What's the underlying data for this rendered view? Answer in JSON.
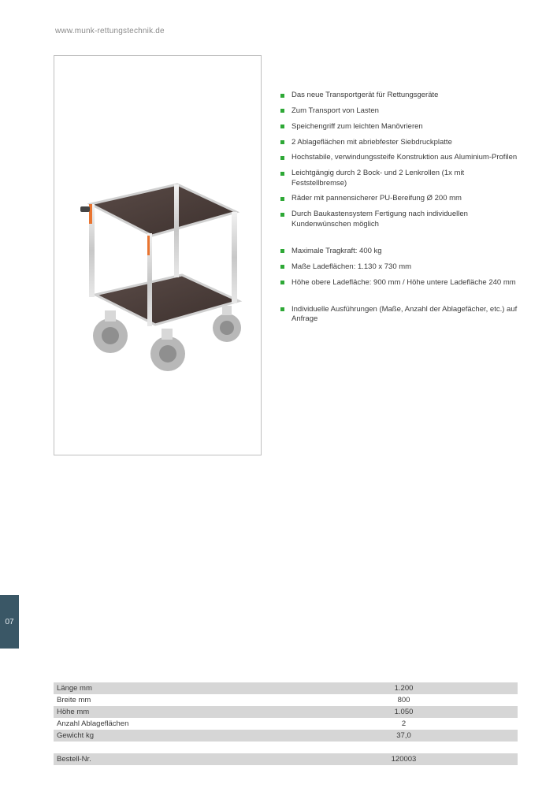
{
  "header": {
    "url": "www.munk-rettungstechnik.de"
  },
  "page_tab": "07",
  "features": [
    {
      "text": "Das neue Transportgerät für Rettungsgeräte",
      "gap_after": false
    },
    {
      "text": "Zum Transport von Lasten",
      "gap_after": false
    },
    {
      "text": "Speichengriff zum leichten Manövrieren",
      "gap_after": false
    },
    {
      "text": "2 Ablageflächen mit abriebfester Siebdruckplatte",
      "gap_after": false
    },
    {
      "text": "Hochstabile, verwindungssteife Konstruktion aus Aluminium-Profilen",
      "gap_after": false
    },
    {
      "text": "Leichtgängig durch 2 Bock- und 2 Lenkrollen (1x mit Feststellbremse)",
      "gap_after": false
    },
    {
      "text": "Räder mit pannensicherer PU-Bereifung Ø 200 mm",
      "gap_after": false
    },
    {
      "text": "Durch Baukastensystem Fertigung nach individuellen Kundenwünschen möglich",
      "gap_after": true
    },
    {
      "text": "Maximale Tragkraft: 400 kg",
      "gap_after": false
    },
    {
      "text": "Maße Ladeflächen: 1.130 x 730 mm",
      "gap_after": false
    },
    {
      "text": "Höhe obere Ladefläche: 900 mm / Höhe untere Ladefläche 240 mm",
      "gap_after": true
    },
    {
      "text": "Individuelle Ausführungen (Maße, Anzahl der Ablagefächer, etc.) auf Anfrage",
      "gap_after": false
    }
  ],
  "table1": {
    "rows": [
      {
        "label": "Länge mm",
        "value": "1.200",
        "shaded": true
      },
      {
        "label": "Breite mm",
        "value": "800",
        "shaded": false
      },
      {
        "label": "Höhe mm",
        "value": "1.050",
        "shaded": true
      },
      {
        "label": "Anzahl Ablageflächen",
        "value": "2",
        "shaded": false
      },
      {
        "label": "Gewicht kg",
        "value": "37,0",
        "shaded": true
      }
    ]
  },
  "table2": {
    "rows": [
      {
        "label": "Bestell-Nr.",
        "value": "120003",
        "shaded": true
      }
    ]
  },
  "colors": {
    "bullet": "#2ea836",
    "tab_bg": "#3a5766",
    "shade": "#d6d6d6",
    "url_text": "#8a8a8a",
    "border": "#bfbfbf"
  }
}
